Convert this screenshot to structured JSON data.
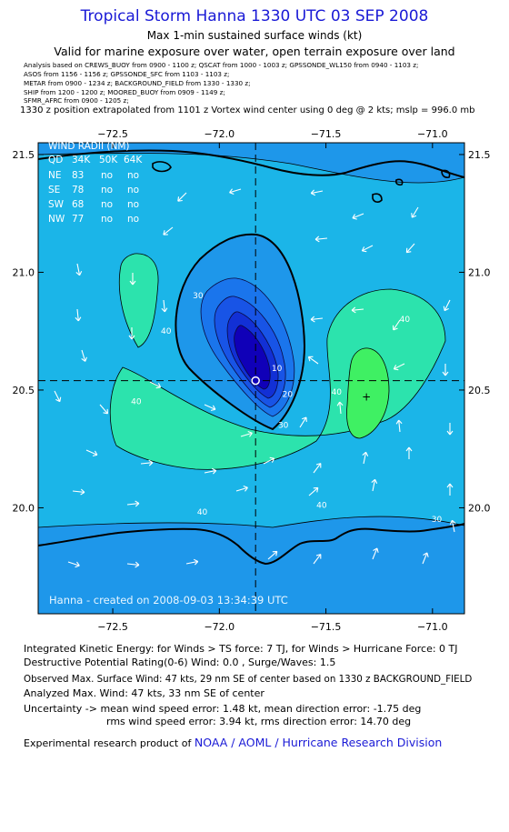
{
  "header": {
    "title": "Tropical Storm Hanna 1330 UTC 03 SEP 2008",
    "subtitle1": "Max 1-min sustained surface winds (kt)",
    "subtitle2": "Valid for marine exposure over water, open terrain exposure over land",
    "analysis_lines": [
      "Analysis based on    CREWS_BUOY from 0900 - 1100 z;  QSCAT from 1000 - 1003 z;  GPSSONDE_WL150 from 0940 - 1103 z;",
      "ASOS from 1156 - 1156 z;  GPSSONDE_SFC from 1103 - 1103 z;",
      "METAR from 0900 - 1234 z;  BACKGROUND_FIELD from 1330 - 1330 z;",
      "SHIP from 1200 - 1200 z;  MOORED_BUOY from 0909 - 1149 z;",
      "SFMR_AFRC from 0900 - 1205 z;"
    ],
    "position_line": "1330 z position extrapolated from 1101 z Vortex wind center using 0 deg @ 2 kts; mslp = 996.0 mb"
  },
  "wind_radii": {
    "title": "WIND RADII (NM)",
    "columns": [
      "QD",
      "34K",
      "50K",
      "64K"
    ],
    "rows": [
      [
        "NE",
        "83",
        "no",
        "no"
      ],
      [
        "SE",
        "78",
        "no",
        "no"
      ],
      [
        "SW",
        "68",
        "no",
        "no"
      ],
      [
        "NW",
        "77",
        "no",
        "no"
      ]
    ]
  },
  "credit": "Hanna - created on 2008-09-03 13:34:39 UTC",
  "chart_data": {
    "type": "contour map",
    "title": "Tropical Storm Hanna 1330 UTC 03 SEP 2008",
    "quantity": "Max 1-min sustained surface winds (kt)",
    "x_axis": {
      "label": "",
      "range": [
        -72.85,
        -70.85
      ],
      "ticks": [
        -72.5,
        -72.0,
        -71.5,
        -71.0
      ],
      "tick_labels": [
        "−72.5",
        "−72.0",
        "−71.5",
        "−71.0"
      ]
    },
    "y_axis": {
      "label": "",
      "range": [
        19.55,
        21.55
      ],
      "ticks": [
        20.0,
        20.5,
        21.0,
        21.5
      ],
      "tick_labels": [
        "20.0",
        "20.5",
        "21.0",
        "21.5"
      ]
    },
    "storm_center": {
      "lon": -71.83,
      "lat": 20.54
    },
    "max_wind_location": {
      "lon": -71.31,
      "lat": 20.47
    },
    "contour_labels": [
      {
        "text": "30",
        "lon": -72.1,
        "lat": 20.89
      },
      {
        "text": "30",
        "lon": -71.7,
        "lat": 20.34
      },
      {
        "text": "10",
        "lon": -71.73,
        "lat": 20.58
      },
      {
        "text": "20",
        "lon": -71.68,
        "lat": 20.47
      },
      {
        "text": "40",
        "lon": -72.25,
        "lat": 20.74
      },
      {
        "text": "40",
        "lon": -72.39,
        "lat": 20.44
      },
      {
        "text": "40",
        "lon": -71.45,
        "lat": 20.48
      },
      {
        "text": "40",
        "lon": -71.13,
        "lat": 20.79
      },
      {
        "text": "40",
        "lon": -71.52,
        "lat": 20.0
      },
      {
        "text": "40",
        "lon": -72.08,
        "lat": 19.97
      },
      {
        "text": "30",
        "lon": -70.98,
        "lat": 19.94
      }
    ],
    "colors": {
      "background": "#1bb5e8",
      "lvl30": "#1e97ea",
      "lvl40": "#2ce3ad",
      "lvl45": "#3ff063",
      "inner1": "#1a75ec",
      "inner2": "#1854e6",
      "inner3": "#1230d5",
      "inner4": "#1000b8",
      "contour": "#000000",
      "label": "#ffffff"
    }
  },
  "footer": {
    "l1": "Integrated Kinetic Energy:  for Winds > TS force: 7 TJ,  for Winds > Hurricane Force: 0 TJ",
    "l2": "Destructive Potential Rating(0-6)   Wind: 0.0 , Surge/Waves: 1.5",
    "l3": "Observed Max. Surface Wind: 47 kts, 29 nm SE of center based on 1330 z BACKGROUND_FIELD",
    "l4": "Analyzed Max. Wind: 47 kts, 33 nm SE of center",
    "l5": "Uncertainty -> mean wind speed error: 1.48 kt,   mean direction error:  -1.75 deg",
    "l6": "rms wind speed error: 3.94 kt,   rms direction error: 14.70 deg",
    "l7_prefix": "Experimental research product of ",
    "l7_link": "NOAA / AOML / Hurricane Research Division"
  }
}
